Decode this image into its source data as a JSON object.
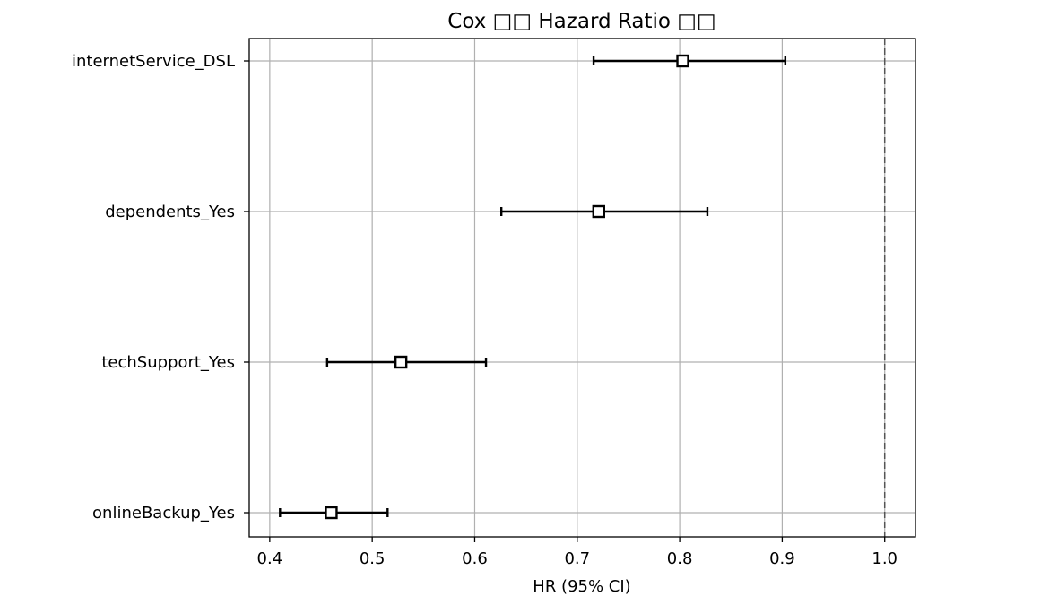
{
  "chart_data": {
    "type": "forest",
    "title": "Cox □□ Hazard Ratio □□",
    "xlabel": "HR (95% CI)",
    "ylabel": "",
    "xlim": [
      0.38,
      1.03
    ],
    "x_ticks": [
      0.4,
      0.5,
      0.6,
      0.7,
      0.8,
      0.9,
      1.0
    ],
    "x_tick_labels": [
      "0.4",
      "0.5",
      "0.6",
      "0.7",
      "0.8",
      "0.9",
      "1.0"
    ],
    "reference_line": {
      "x": 1.0,
      "style": "dashed",
      "color": "#555555"
    },
    "grid": true,
    "rows": [
      {
        "label": "internetService_DSL",
        "hr": 0.803,
        "lower": 0.716,
        "upper": 0.903
      },
      {
        "label": "dependents_Yes",
        "hr": 0.721,
        "lower": 0.626,
        "upper": 0.827
      },
      {
        "label": "techSupport_Yes",
        "hr": 0.528,
        "lower": 0.456,
        "upper": 0.611
      },
      {
        "label": "onlineBackup_Yes",
        "hr": 0.46,
        "lower": 0.41,
        "upper": 0.515
      }
    ]
  }
}
